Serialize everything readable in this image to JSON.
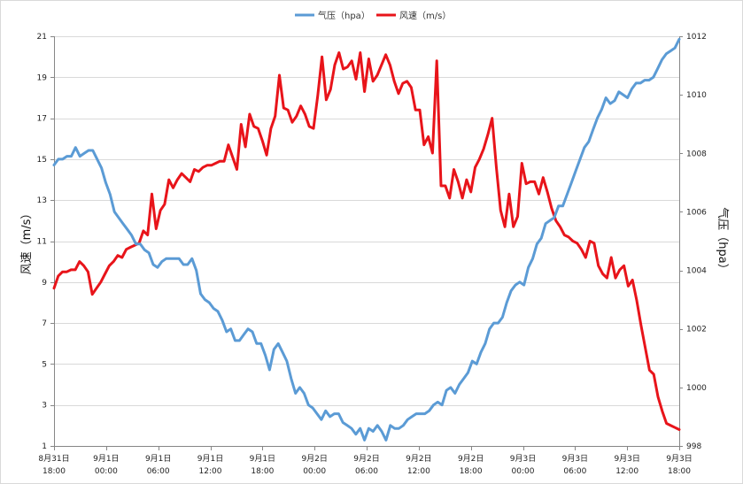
{
  "chart_data": {
    "type": "line",
    "legend": {
      "position": "top-center",
      "entries": [
        {
          "name": "气压（hpa）",
          "color": "#5b9bd5"
        },
        {
          "name": "风速（m/s）",
          "color": "#e8141a"
        }
      ]
    },
    "left_axis": {
      "title": "风速（m/s）",
      "min": 1,
      "max": 21,
      "ticks": [
        1,
        3,
        5,
        7,
        9,
        11,
        13,
        15,
        17,
        19,
        21
      ]
    },
    "right_axis": {
      "title": "气压（hpa）",
      "min": 998,
      "max": 1012,
      "ticks": [
        998,
        1000,
        1002,
        1004,
        1006,
        1008,
        1010,
        1012
      ]
    },
    "x_axis": {
      "categories": [
        [
          "8月31日",
          "18:00"
        ],
        [
          "9月1日",
          "00:00"
        ],
        [
          "9月1日",
          "06:00"
        ],
        [
          "9月1日",
          "12:00"
        ],
        [
          "9月1日",
          "18:00"
        ],
        [
          "9月2日",
          "00:00"
        ],
        [
          "9月2日",
          "06:00"
        ],
        [
          "9月2日",
          "12:00"
        ],
        [
          "9月2日",
          "18:00"
        ],
        [
          "9月3日",
          "00:00"
        ],
        [
          "9月3日",
          "06:00"
        ],
        [
          "9月3日",
          "12:00"
        ],
        [
          "9月3日",
          "18:00"
        ]
      ]
    },
    "grid": {
      "horizontal": true,
      "vertical": false
    },
    "series": [
      {
        "name": "风速（m/s）",
        "axis": "left",
        "color": "#e8141a",
        "values": [
          8.7,
          9.3,
          9.5,
          9.5,
          9.6,
          9.6,
          10.0,
          9.8,
          9.5,
          8.4,
          8.7,
          9.0,
          9.4,
          9.8,
          10.0,
          10.3,
          10.2,
          10.6,
          10.7,
          10.8,
          10.9,
          11.5,
          11.3,
          13.3,
          11.6,
          12.5,
          12.8,
          14.0,
          13.6,
          14.0,
          14.3,
          14.1,
          13.9,
          14.5,
          14.4,
          14.6,
          14.7,
          14.7,
          14.8,
          14.9,
          14.9,
          15.7,
          15.1,
          14.5,
          16.7,
          15.6,
          17.2,
          16.6,
          16.5,
          15.9,
          15.2,
          16.5,
          17.1,
          19.1,
          17.5,
          17.4,
          16.8,
          17.1,
          17.6,
          17.2,
          16.6,
          16.5,
          18.1,
          20.0,
          17.9,
          18.4,
          19.6,
          20.2,
          19.4,
          19.5,
          19.8,
          18.9,
          20.2,
          18.3,
          19.9,
          18.8,
          19.1,
          19.6,
          20.1,
          19.6,
          18.8,
          18.2,
          18.7,
          18.8,
          18.5,
          17.4,
          17.4,
          15.7,
          16.1,
          15.3,
          19.8,
          13.7,
          13.7,
          13.1,
          14.5,
          13.9,
          13.1,
          14.0,
          13.4,
          14.6,
          15.0,
          15.5,
          16.2,
          17.0,
          14.6,
          12.5,
          11.7,
          13.3,
          11.7,
          12.2,
          14.8,
          13.8,
          13.9,
          13.9,
          13.3,
          14.1,
          13.4,
          12.6,
          12.0,
          11.7,
          11.3,
          11.2,
          11.0,
          10.9,
          10.6,
          10.2,
          11.0,
          10.9,
          9.8,
          9.4,
          9.2,
          10.2,
          9.2,
          9.6,
          9.8,
          8.8,
          9.1,
          8.1,
          6.9,
          5.8,
          4.7,
          4.5,
          3.4,
          2.7,
          2.1,
          2.0,
          1.9,
          1.8
        ]
      },
      {
        "name": "气压（hpa）",
        "axis": "right",
        "color": "#5b9bd5",
        "values": [
          1007.6,
          1007.8,
          1007.8,
          1007.9,
          1007.9,
          1008.2,
          1007.9,
          1008.0,
          1008.1,
          1008.1,
          1007.8,
          1007.5,
          1007.0,
          1006.6,
          1006.0,
          1005.8,
          1005.6,
          1005.4,
          1005.2,
          1004.9,
          1004.9,
          1004.7,
          1004.6,
          1004.2,
          1004.1,
          1004.3,
          1004.4,
          1004.4,
          1004.4,
          1004.4,
          1004.2,
          1004.2,
          1004.4,
          1004.0,
          1003.2,
          1003.0,
          1002.9,
          1002.7,
          1002.6,
          1002.3,
          1001.9,
          1002.0,
          1001.6,
          1001.6,
          1001.8,
          1002.0,
          1001.9,
          1001.5,
          1001.5,
          1001.1,
          1000.6,
          1001.3,
          1001.5,
          1001.2,
          1000.9,
          1000.3,
          999.8,
          1000.0,
          999.8,
          999.4,
          999.3,
          999.1,
          998.9,
          999.2,
          999.0,
          999.1,
          999.1,
          998.8,
          998.7,
          998.6,
          998.4,
          998.6,
          998.2,
          998.6,
          998.5,
          998.7,
          998.5,
          998.2,
          998.7,
          998.6,
          998.6,
          998.7,
          998.9,
          999.0,
          999.1,
          999.1,
          999.1,
          999.2,
          999.4,
          999.5,
          999.4,
          999.9,
          1000.0,
          999.8,
          1000.1,
          1000.3,
          1000.5,
          1000.9,
          1000.8,
          1001.2,
          1001.5,
          1002.0,
          1002.2,
          1002.2,
          1002.4,
          1002.9,
          1003.3,
          1003.5,
          1003.6,
          1003.5,
          1004.1,
          1004.4,
          1004.9,
          1005.1,
          1005.6,
          1005.7,
          1005.8,
          1006.2,
          1006.2,
          1006.6,
          1007.0,
          1007.4,
          1007.8,
          1008.2,
          1008.4,
          1008.8,
          1009.2,
          1009.5,
          1009.9,
          1009.7,
          1009.8,
          1010.1,
          1010.0,
          1009.9,
          1010.2,
          1010.4,
          1010.4,
          1010.5,
          1010.5,
          1010.6,
          1010.9,
          1011.2,
          1011.4,
          1011.5,
          1011.6,
          1011.9
        ]
      }
    ]
  }
}
